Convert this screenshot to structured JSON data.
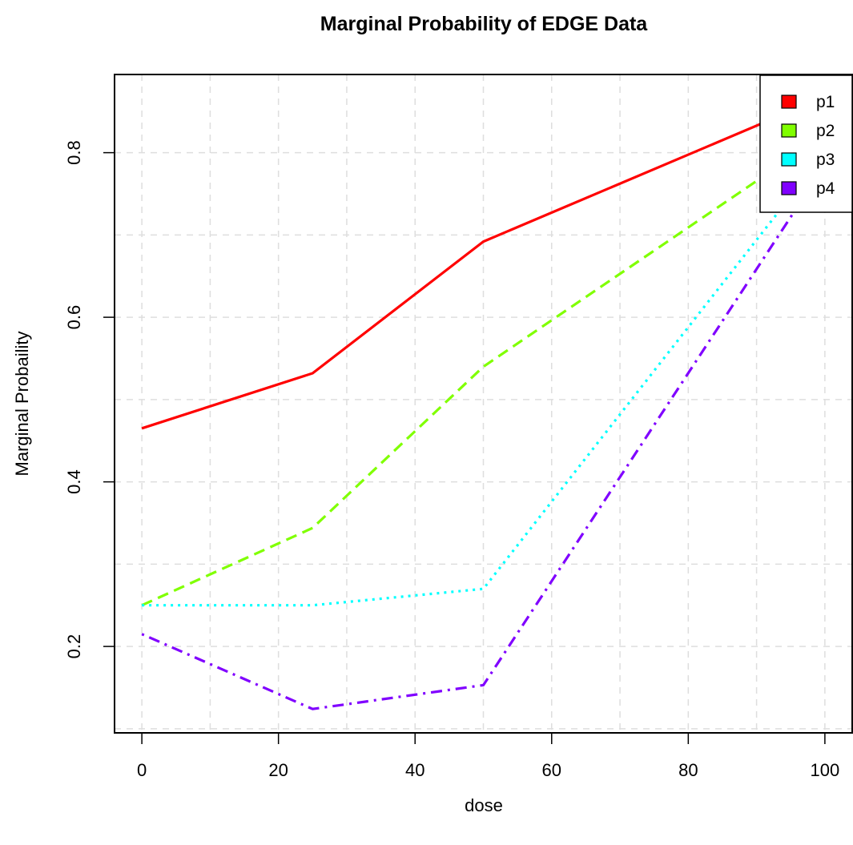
{
  "chart_data": {
    "type": "line",
    "title": "Marginal Probability of EDGE Data",
    "xlabel": "dose",
    "ylabel": "Marginal Probaility",
    "x": [
      0,
      25,
      50,
      100
    ],
    "xlim": [
      -4,
      104
    ],
    "ylim": [
      0.095,
      0.895
    ],
    "x_ticks": [
      0,
      20,
      40,
      60,
      80,
      100
    ],
    "y_ticks": [
      0.2,
      0.4,
      0.6,
      0.8
    ],
    "x_tick_labels": [
      "0",
      "20",
      "40",
      "60",
      "80",
      "100"
    ],
    "y_tick_labels": [
      "0.2",
      "0.4",
      "0.6",
      "0.8"
    ],
    "grid": true,
    "legend_position": "top-right",
    "series": [
      {
        "name": "p1",
        "values": [
          0.465,
          0.532,
          0.692,
          0.868
        ],
        "color": "#ff0000",
        "dash": "solid"
      },
      {
        "name": "p2",
        "values": [
          0.25,
          0.344,
          0.54,
          0.822
        ],
        "color": "#80ff00",
        "dash": "dashed"
      },
      {
        "name": "p3",
        "values": [
          0.25,
          0.25,
          0.27,
          0.8
        ],
        "color": "#00ffff",
        "dash": "dotted"
      },
      {
        "name": "p4",
        "values": [
          0.215,
          0.124,
          0.153,
          0.785
        ],
        "color": "#8000ff",
        "dash": "dotdash"
      }
    ]
  }
}
